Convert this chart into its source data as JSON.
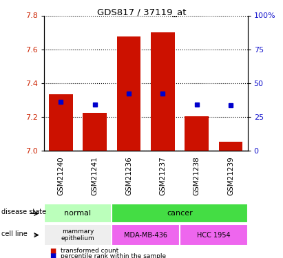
{
  "title": "GDS817 / 37119_at",
  "samples": [
    "GSM21240",
    "GSM21241",
    "GSM21236",
    "GSM21237",
    "GSM21238",
    "GSM21239"
  ],
  "bar_values": [
    7.335,
    7.225,
    7.675,
    7.7,
    7.205,
    7.055
  ],
  "bar_base": 7.0,
  "percentile_values": [
    7.29,
    7.275,
    7.34,
    7.34,
    7.275,
    7.27
  ],
  "ylim": [
    7.0,
    7.8
  ],
  "yticks_left": [
    7.0,
    7.2,
    7.4,
    7.6,
    7.8
  ],
  "yticks_right": [
    0,
    25,
    50,
    75,
    100
  ],
  "bar_color": "#cc1100",
  "percentile_color": "#0000cc",
  "tick_color_left": "#cc2200",
  "tick_color_right": "#1111cc",
  "bar_width": 0.7,
  "normal_color": "#bbffbb",
  "cancer_color": "#44dd44",
  "mammary_color": "#eeeeee",
  "cell_line_color": "#ee66ee",
  "sample_bg_color": "#cccccc"
}
